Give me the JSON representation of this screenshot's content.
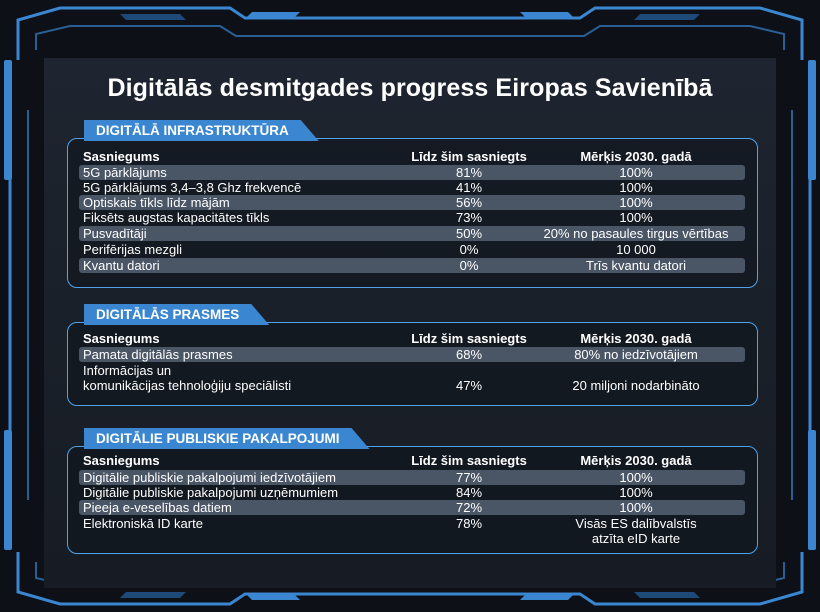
{
  "title": "Digitālās desmitgades progress Eiropas Savienībā",
  "sections": [
    {
      "heading": "DIGITĀLĀ INFRASTRUKTŪRA",
      "columns": [
        "Sasniegums",
        "Līdz šim sasniegts",
        "Mērķis 2030. gadā"
      ],
      "rows": [
        {
          "label": "5G pārklājums",
          "achieved": "81%",
          "target": "100%"
        },
        {
          "label": "5G pārklājums 3,4–3,8 Ghz frekvencē",
          "achieved": "41%",
          "target": "100%"
        },
        {
          "label": "Optiskais tīkls līdz mājām",
          "achieved": "56%",
          "target": "100%"
        },
        {
          "label": "Fiksēts augstas kapacitātes tīkls",
          "achieved": "73%",
          "target": "100%"
        },
        {
          "label": "Pusvadītāji",
          "achieved": "50%",
          "target": "20% no pasaules tirgus vērtības"
        },
        {
          "label": "Perifērijas mezgli",
          "achieved": "0%",
          "target": "10 000"
        },
        {
          "label": "Kvantu datori",
          "achieved": "0%",
          "target": "Trīs kvantu datori"
        }
      ]
    },
    {
      "heading": "DIGITĀLĀS PRASMES",
      "columns": [
        "Sasniegums",
        "Līdz šim sasniegts",
        "Mērķis 2030. gadā"
      ],
      "rows": [
        {
          "label": "Pamata digitālās prasmes",
          "achieved": "68%",
          "target": "80% no iedzīvotājiem"
        },
        {
          "label_line1": "Informācijas un",
          "label_line2": "komunikācijas tehnoloģiju speciālisti",
          "achieved": "47%",
          "target": "20 miljoni nodarbināto"
        }
      ]
    },
    {
      "heading": "DIGITĀLIE PUBLISKIE PAKALPOJUMI",
      "columns": [
        "Sasniegums",
        "Līdz šim sasniegts",
        "Mērķis 2030. gadā"
      ],
      "rows": [
        {
          "label": "Digitālie publiskie pakalpojumi iedzīvotājiem",
          "achieved": "77%",
          "target": "100%"
        },
        {
          "label": "Digitālie publiskie pakalpojumi uzņēmumiem",
          "achieved": "84%",
          "target": "100%"
        },
        {
          "label": "Pieeja e-veselības datiem",
          "achieved": "72%",
          "target": "100%"
        },
        {
          "label": "Elektroniskā ID karte",
          "achieved": "78%",
          "target_line1": "Visās ES dalībvalstīs",
          "target_line2": "atzīta eID karte"
        }
      ]
    }
  ],
  "colors": {
    "background": "#0d1016",
    "panel": "#1c222b",
    "frame_blue": "#3a86d0",
    "box_border": "#4fa3ea",
    "row_highlight": "#4a5566"
  }
}
